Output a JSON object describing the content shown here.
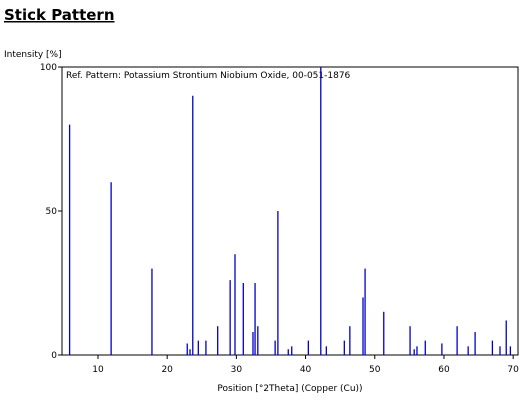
{
  "chart_data": {
    "type": "stick",
    "title": "Stick Pattern",
    "y_label": "Intensity [%]",
    "x_label": "Position [°2Theta] (Copper (Cu))",
    "annotation": "Ref. Pattern: Potassium Strontium Niobium Oxide, 00-051-1876",
    "x": [
      5.9,
      11.9,
      17.8,
      22.9,
      23.3,
      23.7,
      24.5,
      25.6,
      27.3,
      29.1,
      29.8,
      31.0,
      32.4,
      32.7,
      33.1,
      35.6,
      36.0,
      37.5,
      38.0,
      40.4,
      42.2,
      43.0,
      45.6,
      46.4,
      48.3,
      48.6,
      51.3,
      55.1,
      55.7,
      56.1,
      57.3,
      59.7,
      61.9,
      63.5,
      64.5,
      67.0,
      68.1,
      69.0,
      69.6
    ],
    "series": [
      {
        "name": "Potassium Strontium Niobium Oxide",
        "color": "#0000c8",
        "values": [
          80,
          60,
          30,
          4,
          2,
          90,
          5,
          5,
          10,
          26,
          35,
          25,
          8,
          25,
          10,
          5,
          50,
          2,
          3,
          5,
          100,
          3,
          5,
          10,
          20,
          30,
          15,
          10,
          2,
          3,
          5,
          4,
          10,
          3,
          8,
          5,
          3,
          12,
          3
        ]
      }
    ],
    "xlim": [
      4.8,
      70.7
    ],
    "ylim": [
      0,
      100
    ],
    "xticks": [
      10,
      20,
      30,
      40,
      50,
      60,
      70
    ],
    "yticks": [
      0,
      50,
      100
    ]
  }
}
